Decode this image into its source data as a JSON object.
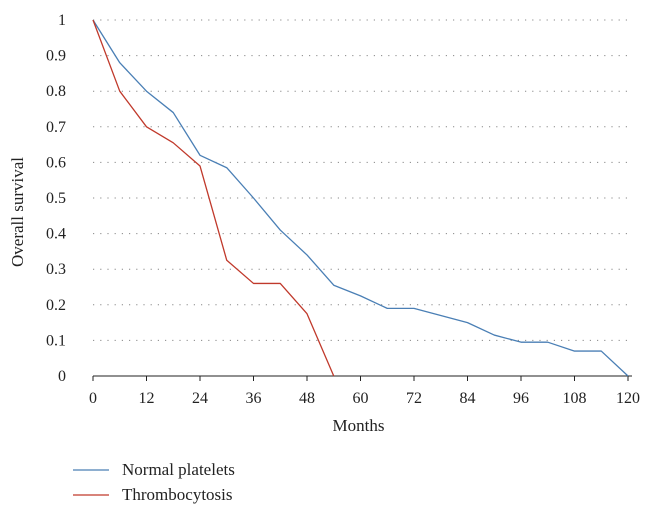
{
  "chart_data": {
    "type": "line",
    "xlabel": "Months",
    "ylabel": "Overall survival",
    "xlim": [
      0,
      120
    ],
    "ylim": [
      0,
      1
    ],
    "xticks": [
      "0",
      "12",
      "24",
      "36",
      "48",
      "60",
      "72",
      "84",
      "96",
      "108",
      "120"
    ],
    "yticks": [
      "0",
      "0.1",
      "0.2",
      "0.3",
      "0.4",
      "0.5",
      "0.6",
      "0.7",
      "0.8",
      "0.9",
      "1"
    ],
    "grid": "horizontal dotted",
    "legend_position": "bottom-left",
    "series": [
      {
        "name": "Normal platelets",
        "color": "#4a7fb5",
        "x": [
          0,
          6,
          12,
          18,
          24,
          30,
          36,
          42,
          48,
          54,
          60,
          66,
          72,
          78,
          84,
          90,
          96,
          102,
          108,
          114,
          120
        ],
        "y": [
          1,
          0.88,
          0.8,
          0.74,
          0.62,
          0.585,
          0.5,
          0.41,
          0.34,
          0.255,
          0.225,
          0.19,
          0.19,
          0.17,
          0.15,
          0.115,
          0.095,
          0.095,
          0.07,
          0.07,
          0
        ]
      },
      {
        "name": "Thrombocytosis",
        "color": "#c0392b",
        "x": [
          0,
          6,
          12,
          18,
          24,
          30,
          36,
          42,
          48,
          54
        ],
        "y": [
          1,
          0.8,
          0.7,
          0.655,
          0.59,
          0.325,
          0.26,
          0.26,
          0.175,
          0
        ]
      }
    ]
  }
}
